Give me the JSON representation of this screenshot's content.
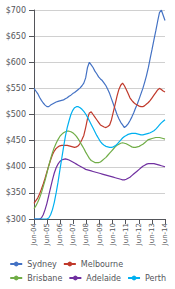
{
  "chart_data": {
    "type": "line",
    "x": [
      0,
      0.1408,
      0.2817,
      0.4225,
      0.5634,
      0.7042,
      0.8451,
      0.9859,
      1.1268,
      1.2676,
      1.4085,
      1.5493,
      1.6901,
      1.831,
      1.9718,
      2.1127,
      2.2535,
      2.3944,
      2.5352,
      2.6761,
      2.8169,
      2.9577,
      3.0986,
      3.2394,
      3.3803,
      3.5211,
      3.662,
      3.8028,
      3.9437,
      4.0845,
      4.2254,
      4.3662,
      4.507,
      4.6479,
      4.7887,
      4.9296,
      5.0704,
      5.2113,
      5.3521,
      5.493,
      5.6338,
      5.7746,
      5.9155,
      6.0563,
      6.1972,
      6.338,
      6.4789,
      6.6197,
      6.7606,
      6.9014,
      7.0423,
      7.1831,
      7.3239,
      7.4648,
      7.6056,
      7.7465,
      7.8873,
      8.0282,
      8.169,
      8.3099,
      8.4507,
      8.5915,
      8.7324,
      8.8732,
      9.0141,
      9.1549,
      9.2958,
      9.4366,
      9.5775,
      9.7183,
      9.8592,
      10
    ],
    "xlim": [
      0,
      10
    ],
    "xticks": [
      {
        "value": 0,
        "label": "Jun-04"
      },
      {
        "value": 1,
        "label": "Jun-05"
      },
      {
        "value": 2,
        "label": "Jun-06"
      },
      {
        "value": 3,
        "label": "Jun-07"
      },
      {
        "value": 4,
        "label": "Jun-08"
      },
      {
        "value": 5,
        "label": "Jun-09"
      },
      {
        "value": 6,
        "label": "Jun-10"
      },
      {
        "value": 7,
        "label": "Jun-11"
      },
      {
        "value": 8,
        "label": "Jun-12"
      },
      {
        "value": 9,
        "label": "Jun-13"
      },
      {
        "value": 10,
        "label": "Jun-14"
      }
    ],
    "ylim": [
      300,
      700
    ],
    "yticks": [
      {
        "value": 300,
        "label": "$300"
      },
      {
        "value": 350,
        "label": "$350"
      },
      {
        "value": 400,
        "label": "$400"
      },
      {
        "value": 450,
        "label": "$450"
      },
      {
        "value": 500,
        "label": "$500"
      },
      {
        "value": 550,
        "label": "$550"
      },
      {
        "value": 600,
        "label": "$600"
      },
      {
        "value": 650,
        "label": "$650"
      },
      {
        "value": 700,
        "label": "$700"
      }
    ],
    "grid": true,
    "legend": "lower right",
    "series": [
      {
        "name": "Sydney",
        "color": "#4472c4",
        "values": [
          550,
          545,
          540,
          533,
          527,
          522,
          518,
          515,
          515,
          518,
          520,
          522,
          524,
          525,
          526,
          527,
          528,
          530,
          532,
          535,
          537,
          540,
          542,
          545,
          548,
          551,
          555,
          560,
          570,
          590,
          600,
          595,
          590,
          583,
          578,
          572,
          568,
          565,
          560,
          555,
          548,
          540,
          530,
          520,
          510,
          500,
          492,
          485,
          480,
          475,
          478,
          482,
          488,
          495,
          503,
          512,
          520,
          530,
          540,
          550,
          562,
          575,
          590,
          608,
          625,
          643,
          660,
          678,
          695,
          700,
          690,
          680
        ]
      },
      {
        "name": "Melbourne",
        "color": "#c0392b",
        "values": [
          330,
          335,
          340,
          348,
          357,
          367,
          378,
          390,
          402,
          413,
          423,
          430,
          435,
          438,
          440,
          441,
          441,
          441,
          441,
          440,
          439,
          438,
          437,
          438,
          440,
          445,
          452,
          460,
          475,
          492,
          503,
          505,
          500,
          495,
          490,
          485,
          480,
          478,
          476,
          475,
          477,
          480,
          490,
          505,
          520,
          535,
          548,
          556,
          560,
          555,
          548,
          540,
          532,
          527,
          523,
          520,
          518,
          516,
          515,
          515,
          517,
          520,
          523,
          527,
          532,
          537,
          542,
          547,
          550,
          548,
          545,
          543
        ]
      },
      {
        "name": "Brisbane",
        "color": "#70ad47",
        "values": [
          320,
          325,
          332,
          340,
          350,
          362,
          374,
          388,
          402,
          415,
          427,
          437,
          445,
          452,
          458,
          462,
          465,
          467,
          468,
          468,
          467,
          465,
          462,
          458,
          453,
          447,
          441,
          435,
          428,
          422,
          416,
          412,
          410,
          408,
          408,
          408,
          409,
          412,
          415,
          418,
          422,
          426,
          430,
          434,
          438,
          441,
          443,
          445,
          446,
          445,
          444,
          442,
          440,
          438,
          437,
          437,
          438,
          439,
          441,
          443,
          446,
          449,
          452,
          453,
          454,
          455,
          456,
          456,
          456,
          455,
          454,
          453
        ]
      },
      {
        "name": "Adelaide",
        "color": "#7030a0",
        "values": [
          300,
          300,
          300,
          300,
          302,
          308,
          318,
          330,
          345,
          360,
          375,
          388,
          398,
          405,
          410,
          413,
          414,
          415,
          414,
          413,
          411,
          409,
          407,
          405,
          403,
          401,
          399,
          397,
          395,
          394,
          393,
          392,
          391,
          390,
          389,
          388,
          387,
          386,
          385,
          384,
          383,
          382,
          381,
          380,
          379,
          378,
          377,
          376,
          375,
          375,
          376,
          378,
          380,
          383,
          386,
          389,
          392,
          395,
          398,
          401,
          403,
          405,
          406,
          406,
          406,
          406,
          405,
          404,
          403,
          402,
          401,
          400
        ]
      },
      {
        "name": "Perth",
        "color": "#00b0f0",
        "values": [
          300,
          300,
          300,
          300,
          300,
          300,
          300,
          300,
          302,
          308,
          318,
          332,
          350,
          370,
          393,
          415,
          437,
          458,
          475,
          488,
          500,
          508,
          513,
          515,
          515,
          513,
          510,
          506,
          501,
          495,
          488,
          481,
          474,
          467,
          460,
          454,
          448,
          444,
          441,
          439,
          438,
          437,
          437,
          438,
          440,
          443,
          447,
          451,
          455,
          458,
          460,
          462,
          463,
          464,
          464,
          464,
          463,
          462,
          461,
          461,
          462,
          463,
          464,
          465,
          467,
          469,
          472,
          476,
          480,
          484,
          487,
          490
        ]
      }
    ]
  }
}
